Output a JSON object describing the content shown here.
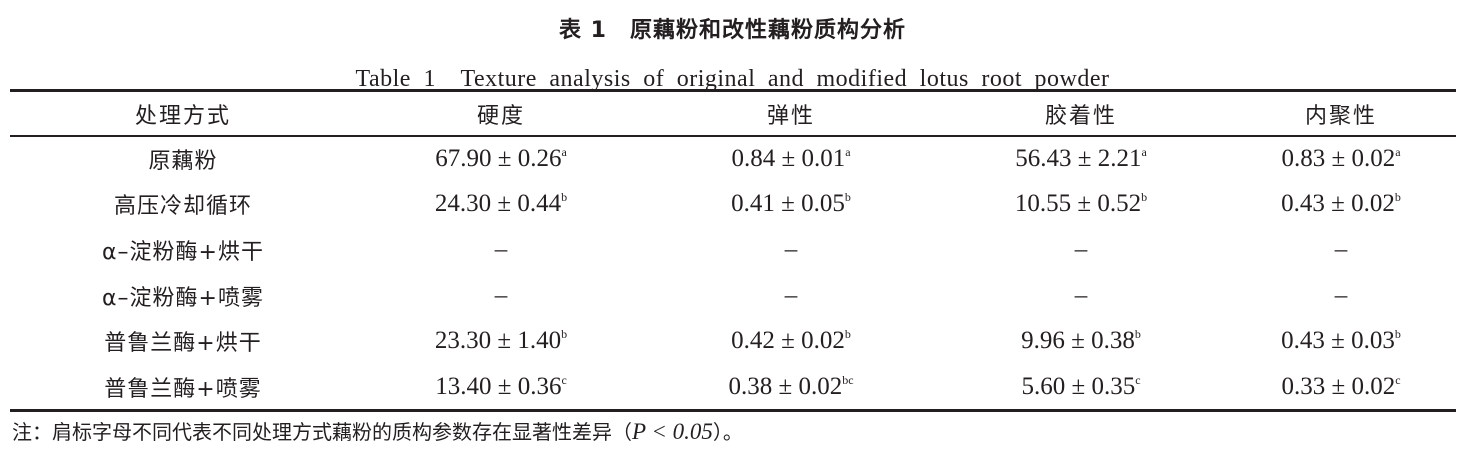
{
  "title_cn": "表 1　原藕粉和改性藕粉质构分析",
  "title_en": "Table 1　Texture analysis of original and modified lotus root powder",
  "headers": [
    "处理方式",
    "硬度",
    "弹性",
    "胶着性",
    "内聚性"
  ],
  "rows": [
    {
      "name": "原藕粉",
      "cells": [
        {
          "v": "67.90 ± 0.26",
          "s": "a"
        },
        {
          "v": "0.84 ± 0.01",
          "s": "a"
        },
        {
          "v": "56.43 ± 2.21",
          "s": "a"
        },
        {
          "v": "0.83 ± 0.02",
          "s": "a"
        }
      ]
    },
    {
      "name": "高压冷却循环",
      "cells": [
        {
          "v": "24.30 ± 0.44",
          "s": "b"
        },
        {
          "v": "0.41 ± 0.05",
          "s": "b"
        },
        {
          "v": "10.55 ± 0.52",
          "s": "b"
        },
        {
          "v": "0.43 ± 0.02",
          "s": "b"
        }
      ]
    },
    {
      "name": "α–淀粉酶+烘干",
      "cells": [
        {
          "v": "–",
          "s": ""
        },
        {
          "v": "–",
          "s": ""
        },
        {
          "v": "–",
          "s": ""
        },
        {
          "v": "–",
          "s": ""
        }
      ]
    },
    {
      "name": "α–淀粉酶+喷雾",
      "cells": [
        {
          "v": "–",
          "s": ""
        },
        {
          "v": "–",
          "s": ""
        },
        {
          "v": "–",
          "s": ""
        },
        {
          "v": "–",
          "s": ""
        }
      ]
    },
    {
      "name": "普鲁兰酶+烘干",
      "cells": [
        {
          "v": "23.30 ± 1.40",
          "s": "b"
        },
        {
          "v": "0.42 ± 0.02",
          "s": "b"
        },
        {
          "v": "9.96 ± 0.38",
          "s": "b"
        },
        {
          "v": "0.43 ± 0.03",
          "s": "b"
        }
      ]
    },
    {
      "name": "普鲁兰酶+喷雾",
      "cells": [
        {
          "v": "13.40 ± 0.36",
          "s": "c"
        },
        {
          "v": "0.38 ± 0.02",
          "s": "bc"
        },
        {
          "v": "5.60 ± 0.35",
          "s": "c"
        },
        {
          "v": "0.33 ± 0.02",
          "s": "c"
        }
      ]
    }
  ],
  "note": {
    "prefix": "注：肩标字母不同代表不同处理方式藕粉的质构参数存在显著性差异（",
    "p": "P < 0.05",
    "suffix": "）。"
  }
}
